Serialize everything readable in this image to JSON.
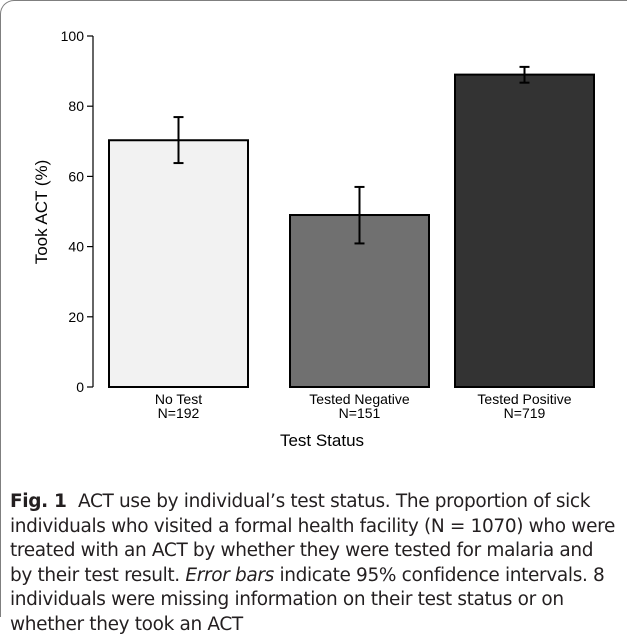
{
  "chart_data": {
    "type": "bar",
    "categories": [
      "No Test",
      "Tested Negative",
      "Tested Positive"
    ],
    "category_sublabels": [
      "N=192",
      "N=151",
      "N=719"
    ],
    "values": [
      70.3,
      49.0,
      89.0
    ],
    "error_low": [
      63.8,
      40.9,
      86.7
    ],
    "error_high": [
      76.9,
      57.0,
      91.2
    ],
    "bar_colors": [
      "#f2f2f2",
      "#707070",
      "#333333"
    ],
    "xlabel": "Test Status",
    "ylabel": "Took ACT (%)",
    "ylim": [
      0,
      100
    ],
    "yticks": [
      "0",
      "20",
      "40",
      "60",
      "80",
      "100"
    ],
    "grid": false
  },
  "caption": {
    "label": "Fig. 1",
    "text_before_italic": "ACT use by individual’s test status. The proportion of sick individuals who visited a formal health facility (N = 1070) who were treated with an ACT by whether they were tested for malaria and by their test result.",
    "italic": "Error bars",
    "text_after_italic": "indicate 95% confidence intervals. 8 individuals were missing information on their test status or on whether they took an ACT"
  }
}
